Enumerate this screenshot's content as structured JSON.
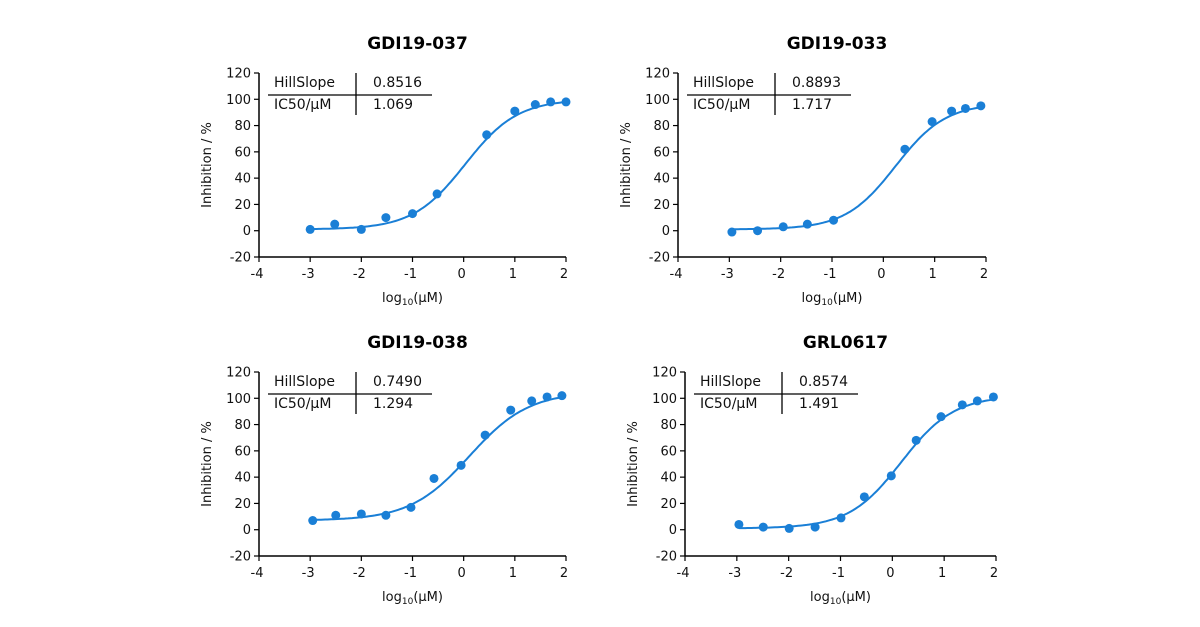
{
  "colors": {
    "series": "#1a7fd6",
    "axis": "#000000"
  },
  "chart_data": [
    {
      "type": "scatter",
      "title": "GDI19-037",
      "xlabel": "log10(μM)",
      "ylabel": "Inhibition / %",
      "xlim": [
        -4,
        2
      ],
      "ylim": [
        -20,
        120
      ],
      "xticks": [
        -4,
        -3,
        -2,
        -1,
        0,
        1,
        2
      ],
      "yticks": [
        -20,
        0,
        20,
        40,
        60,
        80,
        100,
        120
      ],
      "grid": false,
      "table": {
        "rows": [
          {
            "label": "HillSlope",
            "value": "0.8516"
          },
          {
            "label": "IC50/μM",
            "value": "1.069"
          }
        ]
      },
      "x": [
        -3,
        -2.52,
        -2,
        -1.52,
        -1,
        -0.52,
        0.45,
        1,
        1.4,
        1.7,
        2
      ],
      "y": [
        1,
        5,
        1,
        10,
        13,
        28,
        73,
        91,
        96,
        98,
        98
      ],
      "fit": {
        "type": "4PL sigmoid",
        "hill_slope": 0.8516,
        "ic50_uM": 1.069
      }
    },
    {
      "type": "scatter",
      "title": "GDI19-033",
      "xlabel": "log10(μM)",
      "ylabel": "Inhibition / %",
      "xlim": [
        -4,
        2
      ],
      "ylim": [
        -20,
        120
      ],
      "xticks": [
        -4,
        -3,
        -2,
        -1,
        0,
        1,
        2
      ],
      "yticks": [
        -20,
        0,
        20,
        40,
        60,
        80,
        100,
        120
      ],
      "grid": false,
      "table": {
        "rows": [
          {
            "label": "HillSlope",
            "value": "0.8893"
          },
          {
            "label": "IC50/μM",
            "value": "1.717"
          }
        ]
      },
      "x": [
        -2.95,
        -2.45,
        -1.95,
        -1.48,
        -0.97,
        0.42,
        0.95,
        1.33,
        1.6,
        1.9
      ],
      "y": [
        -1,
        0,
        3,
        5,
        8,
        62,
        83,
        91,
        93,
        95
      ],
      "fit": {
        "type": "4PL sigmoid",
        "hill_slope": 0.8893,
        "ic50_uM": 1.717
      }
    },
    {
      "type": "scatter",
      "title": "GDI19-038",
      "xlabel": "log10(μM)",
      "ylabel": "Inhibition / %",
      "xlim": [
        -4,
        2
      ],
      "ylim": [
        -20,
        120
      ],
      "xticks": [
        -4,
        -3,
        -2,
        -1,
        0,
        1,
        2
      ],
      "yticks": [
        -20,
        0,
        20,
        40,
        60,
        80,
        100,
        120
      ],
      "grid": false,
      "table": {
        "rows": [
          {
            "label": "HillSlope",
            "value": "0.7490"
          },
          {
            "label": "IC50/μM",
            "value": "1.294"
          }
        ]
      },
      "x": [
        -2.95,
        -2.5,
        -2,
        -1.52,
        -1.03,
        -0.58,
        -0.05,
        0.42,
        0.92,
        1.33,
        1.63,
        1.92
      ],
      "y": [
        7,
        11,
        12,
        11,
        17,
        39,
        49,
        72,
        91,
        98,
        101,
        102
      ],
      "fit": {
        "type": "4PL sigmoid",
        "hill_slope": 0.749,
        "ic50_uM": 1.294
      }
    },
    {
      "type": "scatter",
      "title": "GRL0617",
      "xlabel": "log10(μM)",
      "ylabel": "Inhibition / %",
      "xlim": [
        -4,
        2
      ],
      "ylim": [
        -20,
        120
      ],
      "xticks": [
        -4,
        -3,
        -2,
        -1,
        0,
        1,
        2
      ],
      "yticks": [
        -20,
        0,
        20,
        40,
        60,
        80,
        100,
        120
      ],
      "grid": false,
      "table": {
        "rows": [
          {
            "label": "HillSlope",
            "value": "0.8574"
          },
          {
            "label": "IC50/μM",
            "value": "1.491"
          }
        ]
      },
      "x": [
        -2.96,
        -2.49,
        -1.99,
        -1.49,
        -0.99,
        -0.54,
        -0.02,
        0.46,
        0.94,
        1.35,
        1.64,
        1.95
      ],
      "y": [
        4,
        2,
        1,
        2,
        9,
        25,
        41,
        68,
        86,
        95,
        98,
        101
      ],
      "fit": {
        "type": "4PL sigmoid",
        "hill_slope": 0.8574,
        "ic50_uM": 1.491
      }
    }
  ]
}
